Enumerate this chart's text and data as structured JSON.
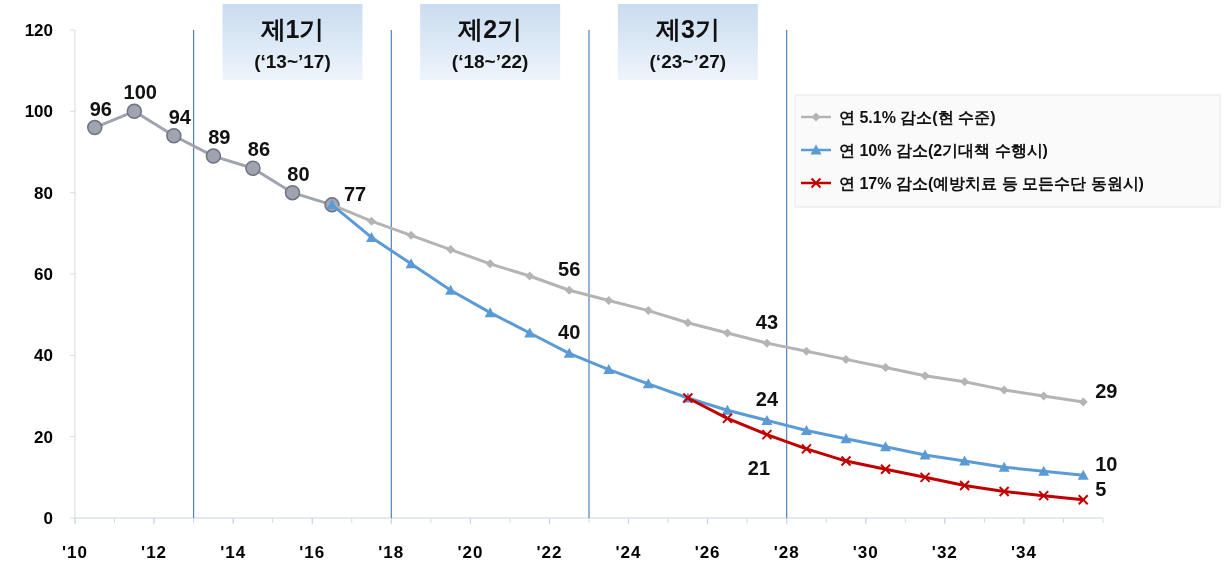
{
  "chart_data": {
    "type": "line",
    "xlim": [
      2010,
      2036
    ],
    "xticks": [
      {
        "value": 2010,
        "label": "'10"
      },
      {
        "value": 2012,
        "label": "'12"
      },
      {
        "value": 2014,
        "label": "'14"
      },
      {
        "value": 2016,
        "label": "'16"
      },
      {
        "value": 2018,
        "label": "'18"
      },
      {
        "value": 2020,
        "label": "'20"
      },
      {
        "value": 2022,
        "label": "'22"
      },
      {
        "value": 2024,
        "label": "'24"
      },
      {
        "value": 2026,
        "label": "'26"
      },
      {
        "value": 2028,
        "label": "'28"
      },
      {
        "value": 2030,
        "label": "'30"
      },
      {
        "value": 2032,
        "label": "'32"
      },
      {
        "value": 2034,
        "label": "'34"
      }
    ],
    "ylim": [
      0,
      120
    ],
    "yticks": [
      0,
      20,
      40,
      60,
      80,
      100,
      120
    ],
    "legend": "right",
    "series": [
      {
        "color": "#a0a4b0",
        "marker": "circle",
        "x": [
          2010.5,
          2011.5,
          2012.5,
          2013.5,
          2014.5,
          2015.5,
          2016.5
        ],
        "values": [
          96,
          100,
          94,
          89,
          86,
          80,
          77
        ],
        "value_labels": [
          "96",
          "100",
          "94",
          "89",
          "86",
          "80",
          "77"
        ]
      },
      {
        "name": "연 5.1% 감소(현 수준)",
        "color": "#b4b4b4",
        "marker": "diamond",
        "x": [
          2016.5,
          2017.5,
          2018.5,
          2019.5,
          2020.5,
          2021.5,
          2022.5,
          2023.5,
          2024.5,
          2025.5,
          2026.5,
          2027.5,
          2028.5,
          2029.5,
          2030.5,
          2031.5,
          2032.5,
          2033.5,
          2034.5,
          2035.5
        ],
        "values": [
          77,
          73,
          69.5,
          66,
          62.5,
          59.5,
          56,
          53.5,
          51,
          48,
          45.5,
          43,
          41,
          39,
          37,
          35,
          33.5,
          31.5,
          30,
          28.5
        ],
        "value_labels": [
          null,
          null,
          null,
          null,
          null,
          null,
          "56",
          null,
          null,
          null,
          null,
          "43",
          null,
          null,
          null,
          null,
          null,
          null,
          null,
          "29"
        ]
      },
      {
        "name": "연 10% 감소(2기대책 수행시)",
        "color": "#5b9bd5",
        "marker": "triangle",
        "x": [
          2016.5,
          2017.5,
          2018.5,
          2019.5,
          2020.5,
          2021.5,
          2022.5,
          2023.5,
          2024.5,
          2025.5,
          2026.5,
          2027.5,
          2028.5,
          2029.5,
          2030.5,
          2031.5,
          2032.5,
          2033.5,
          2034.5,
          2035.5
        ],
        "values": [
          77,
          69,
          62.5,
          56,
          50.5,
          45.5,
          40.5,
          36.5,
          33,
          29.5,
          26.5,
          24,
          21.5,
          19.5,
          17.5,
          15.5,
          14,
          12.5,
          11.5,
          10.5
        ],
        "value_labels": [
          null,
          null,
          null,
          null,
          null,
          null,
          "40",
          null,
          null,
          null,
          null,
          "24",
          null,
          null,
          null,
          null,
          null,
          null,
          null,
          "10"
        ]
      },
      {
        "name": "연 17% 감소(예방치료 등 모든수단 동원시)",
        "color": "#c00000",
        "marker": "cross",
        "x": [
          2025.5,
          2026.5,
          2027.5,
          2028.5,
          2029.5,
          2030.5,
          2031.5,
          2032.5,
          2033.5,
          2034.5,
          2035.5
        ],
        "values": [
          29.5,
          24.5,
          20.5,
          17,
          14,
          12,
          10,
          8,
          6.5,
          5.5,
          4.5
        ],
        "value_labels": [
          null,
          null,
          "21",
          null,
          null,
          null,
          null,
          null,
          null,
          null,
          "5"
        ]
      }
    ],
    "ref_lines": [
      {
        "axis": "x",
        "value": 2013,
        "color": "#4f81bd"
      },
      {
        "axis": "x",
        "value": 2018,
        "color": "#4f81bd"
      },
      {
        "axis": "x",
        "value": 2023,
        "color": "#4f81bd"
      },
      {
        "axis": "x",
        "value": 2028,
        "color": "#4f81bd"
      }
    ],
    "annotations": [
      "제1기\n(‘13~’17)",
      "제2기\n(‘18~’22)",
      "제3기\n(‘23~’27)"
    ]
  }
}
